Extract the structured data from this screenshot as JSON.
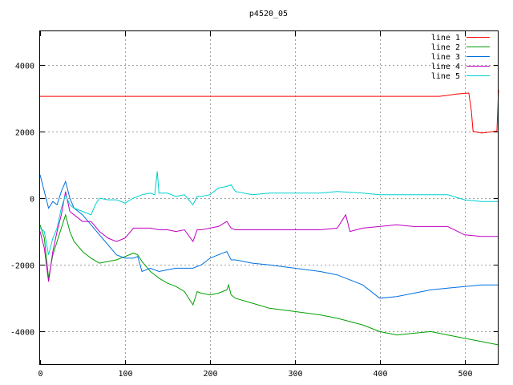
{
  "chart_data": {
    "type": "line",
    "title": "p4520_05",
    "xlabel": "",
    "ylabel": "",
    "xlim": [
      0,
      540
    ],
    "ylim": [
      -5000,
      5000
    ],
    "xticks": [
      0,
      100,
      200,
      300,
      400,
      500
    ],
    "yticks": [
      -4000,
      -2000,
      0,
      2000,
      4000
    ],
    "grid": true,
    "legend_position": "top-right",
    "series": [
      {
        "name": "line 1",
        "color": "#ff0000",
        "points": [
          [
            0,
            3050
          ],
          [
            100,
            3050
          ],
          [
            200,
            3050
          ],
          [
            300,
            3050
          ],
          [
            400,
            3050
          ],
          [
            470,
            3050
          ],
          [
            480,
            3080
          ],
          [
            490,
            3120
          ],
          [
            500,
            3140
          ],
          [
            505,
            3150
          ],
          [
            508,
            2600
          ],
          [
            510,
            2000
          ],
          [
            520,
            1950
          ],
          [
            530,
            1980
          ],
          [
            535,
            2000
          ],
          [
            538,
            2000
          ],
          [
            540,
            3250
          ]
        ]
      },
      {
        "name": "line 2",
        "color": "#00a000",
        "points": [
          [
            0,
            -800
          ],
          [
            5,
            -1200
          ],
          [
            10,
            -2400
          ],
          [
            15,
            -1700
          ],
          [
            20,
            -1300
          ],
          [
            25,
            -900
          ],
          [
            30,
            -500
          ],
          [
            35,
            -1000
          ],
          [
            40,
            -1300
          ],
          [
            50,
            -1600
          ],
          [
            60,
            -1800
          ],
          [
            70,
            -1950
          ],
          [
            80,
            -1900
          ],
          [
            90,
            -1850
          ],
          [
            100,
            -1750
          ],
          [
            110,
            -1650
          ],
          [
            115,
            -1700
          ],
          [
            120,
            -1900
          ],
          [
            130,
            -2200
          ],
          [
            140,
            -2400
          ],
          [
            150,
            -2550
          ],
          [
            160,
            -2650
          ],
          [
            170,
            -2800
          ],
          [
            180,
            -3200
          ],
          [
            185,
            -2800
          ],
          [
            190,
            -2850
          ],
          [
            200,
            -2900
          ],
          [
            210,
            -2850
          ],
          [
            220,
            -2750
          ],
          [
            222,
            -2600
          ],
          [
            225,
            -2900
          ],
          [
            230,
            -3000
          ],
          [
            250,
            -3150
          ],
          [
            270,
            -3300
          ],
          [
            300,
            -3400
          ],
          [
            330,
            -3500
          ],
          [
            350,
            -3600
          ],
          [
            380,
            -3800
          ],
          [
            400,
            -4000
          ],
          [
            420,
            -4100
          ],
          [
            440,
            -4050
          ],
          [
            460,
            -4000
          ],
          [
            480,
            -4100
          ],
          [
            500,
            -4200
          ],
          [
            520,
            -4300
          ],
          [
            540,
            -4400
          ]
        ]
      },
      {
        "name": "line 3",
        "color": "#0070e0",
        "points": [
          [
            0,
            700
          ],
          [
            5,
            200
          ],
          [
            10,
            -300
          ],
          [
            15,
            -100
          ],
          [
            20,
            -200
          ],
          [
            25,
            200
          ],
          [
            30,
            500
          ],
          [
            35,
            0
          ],
          [
            40,
            -300
          ],
          [
            50,
            -500
          ],
          [
            60,
            -800
          ],
          [
            70,
            -1100
          ],
          [
            80,
            -1400
          ],
          [
            90,
            -1700
          ],
          [
            100,
            -1800
          ],
          [
            110,
            -1800
          ],
          [
            115,
            -1750
          ],
          [
            120,
            -2200
          ],
          [
            130,
            -2100
          ],
          [
            140,
            -2200
          ],
          [
            150,
            -2150
          ],
          [
            160,
            -2100
          ],
          [
            170,
            -2100
          ],
          [
            180,
            -2100
          ],
          [
            190,
            -2000
          ],
          [
            200,
            -1800
          ],
          [
            210,
            -1700
          ],
          [
            220,
            -1600
          ],
          [
            225,
            -1850
          ],
          [
            230,
            -1850
          ],
          [
            250,
            -1950
          ],
          [
            270,
            -2000
          ],
          [
            300,
            -2100
          ],
          [
            330,
            -2200
          ],
          [
            350,
            -2300
          ],
          [
            380,
            -2600
          ],
          [
            400,
            -3000
          ],
          [
            420,
            -2950
          ],
          [
            440,
            -2850
          ],
          [
            460,
            -2750
          ],
          [
            480,
            -2700
          ],
          [
            500,
            -2650
          ],
          [
            520,
            -2600
          ],
          [
            540,
            -2600
          ]
        ]
      },
      {
        "name": "line 4",
        "color": "#c000c0",
        "points": [
          [
            0,
            -1000
          ],
          [
            5,
            -1500
          ],
          [
            10,
            -2500
          ],
          [
            15,
            -1600
          ],
          [
            20,
            -1000
          ],
          [
            25,
            -500
          ],
          [
            30,
            200
          ],
          [
            35,
            -400
          ],
          [
            40,
            -500
          ],
          [
            50,
            -700
          ],
          [
            60,
            -700
          ],
          [
            70,
            -1000
          ],
          [
            80,
            -1200
          ],
          [
            90,
            -1300
          ],
          [
            100,
            -1200
          ],
          [
            110,
            -900
          ],
          [
            120,
            -900
          ],
          [
            130,
            -900
          ],
          [
            140,
            -950
          ],
          [
            150,
            -950
          ],
          [
            160,
            -1000
          ],
          [
            170,
            -950
          ],
          [
            180,
            -1300
          ],
          [
            185,
            -950
          ],
          [
            190,
            -950
          ],
          [
            200,
            -900
          ],
          [
            210,
            -850
          ],
          [
            220,
            -700
          ],
          [
            225,
            -900
          ],
          [
            230,
            -950
          ],
          [
            250,
            -950
          ],
          [
            270,
            -950
          ],
          [
            300,
            -950
          ],
          [
            330,
            -950
          ],
          [
            350,
            -900
          ],
          [
            360,
            -500
          ],
          [
            365,
            -1000
          ],
          [
            380,
            -900
          ],
          [
            400,
            -850
          ],
          [
            420,
            -800
          ],
          [
            440,
            -850
          ],
          [
            460,
            -850
          ],
          [
            480,
            -850
          ],
          [
            500,
            -1100
          ],
          [
            520,
            -1150
          ],
          [
            540,
            -1150
          ]
        ]
      },
      {
        "name": "line 5",
        "color": "#00d0d0",
        "points": [
          [
            0,
            -900
          ],
          [
            5,
            -1000
          ],
          [
            10,
            -1700
          ],
          [
            15,
            -1200
          ],
          [
            20,
            -900
          ],
          [
            25,
            -300
          ],
          [
            30,
            100
          ],
          [
            35,
            -200
          ],
          [
            40,
            -300
          ],
          [
            50,
            -400
          ],
          [
            60,
            -500
          ],
          [
            65,
            -200
          ],
          [
            70,
            0
          ],
          [
            80,
            -50
          ],
          [
            90,
            -50
          ],
          [
            100,
            -150
          ],
          [
            110,
            0
          ],
          [
            120,
            100
          ],
          [
            130,
            150
          ],
          [
            135,
            100
          ],
          [
            138,
            800
          ],
          [
            140,
            150
          ],
          [
            150,
            150
          ],
          [
            160,
            50
          ],
          [
            170,
            100
          ],
          [
            180,
            -200
          ],
          [
            185,
            50
          ],
          [
            190,
            50
          ],
          [
            200,
            100
          ],
          [
            210,
            300
          ],
          [
            220,
            350
          ],
          [
            225,
            400
          ],
          [
            230,
            200
          ],
          [
            250,
            100
          ],
          [
            270,
            150
          ],
          [
            300,
            150
          ],
          [
            330,
            150
          ],
          [
            350,
            200
          ],
          [
            380,
            150
          ],
          [
            400,
            100
          ],
          [
            420,
            100
          ],
          [
            440,
            100
          ],
          [
            460,
            100
          ],
          [
            480,
            100
          ],
          [
            500,
            -50
          ],
          [
            520,
            -100
          ],
          [
            540,
            -100
          ]
        ]
      }
    ]
  }
}
